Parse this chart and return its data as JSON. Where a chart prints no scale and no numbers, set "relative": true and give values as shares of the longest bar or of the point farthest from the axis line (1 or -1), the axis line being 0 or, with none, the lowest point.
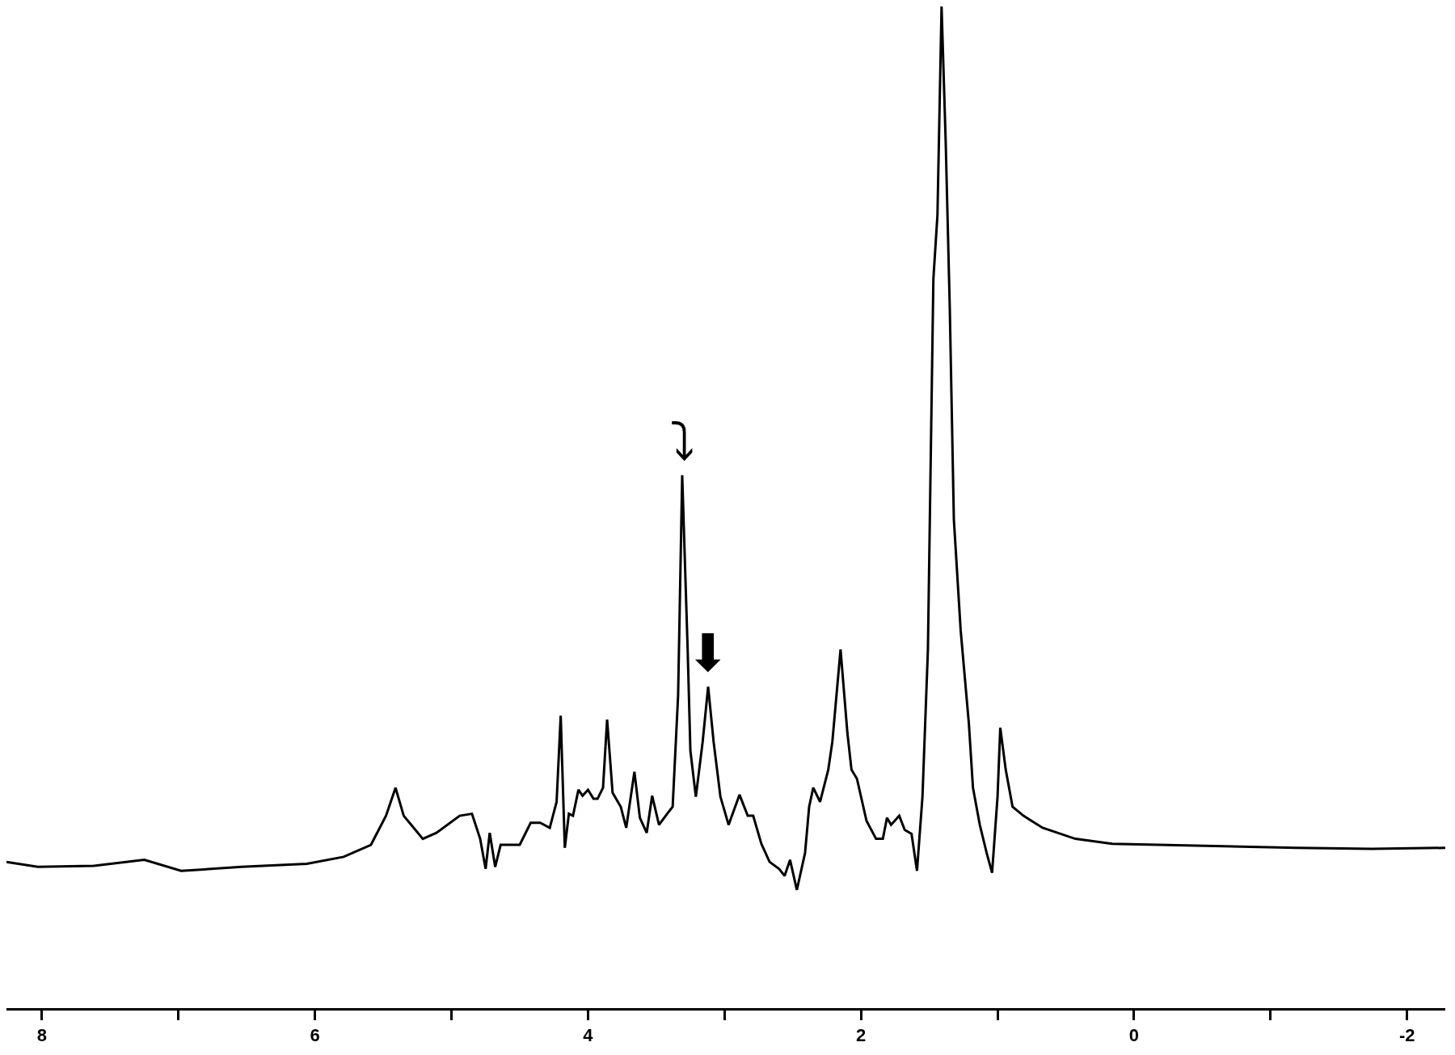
{
  "chart_data": {
    "type": "line",
    "relative": true,
    "color": "#000000",
    "x": [
      8.26,
      8.03,
      7.62,
      7.25,
      6.98,
      6.54,
      6.06,
      5.79,
      5.59,
      5.48,
      5.41,
      5.35,
      5.21,
      5.11,
      4.94,
      4.85,
      4.79,
      4.75,
      4.72,
      4.68,
      4.64,
      4.5,
      4.42,
      4.35,
      4.28,
      4.23,
      4.2,
      4.17,
      4.14,
      4.11,
      4.07,
      4.04,
      4.0,
      3.96,
      3.93,
      3.89,
      3.86,
      3.82,
      3.76,
      3.72,
      3.66,
      3.62,
      3.57,
      3.53,
      3.48,
      3.42,
      3.38,
      3.34,
      3.31,
      3.27,
      3.25,
      3.21,
      3.16,
      3.12,
      3.08,
      3.03,
      2.97,
      2.89,
      2.83,
      2.79,
      2.73,
      2.67,
      2.6,
      2.56,
      2.52,
      2.47,
      2.41,
      2.38,
      2.35,
      2.3,
      2.24,
      2.21,
      2.15,
      2.1,
      2.07,
      2.03,
      1.96,
      1.89,
      1.84,
      1.81,
      1.78,
      1.72,
      1.68,
      1.63,
      1.59,
      1.55,
      1.51,
      1.47,
      1.44,
      1.41,
      1.38,
      1.35,
      1.32,
      1.27,
      1.21,
      1.18,
      1.13,
      1.08,
      1.04,
      1.0,
      0.98,
      0.94,
      0.89,
      0.81,
      0.67,
      0.43,
      0.16,
      -0.18,
      -0.52,
      -1.19,
      -1.74,
      -2.28
    ],
    "values": [
      0.146,
      0.141,
      0.142,
      0.148,
      0.137,
      0.141,
      0.144,
      0.151,
      0.163,
      0.192,
      0.22,
      0.192,
      0.169,
      0.175,
      0.192,
      0.194,
      0.169,
      0.139,
      0.175,
      0.141,
      0.163,
      0.163,
      0.185,
      0.185,
      0.18,
      0.206,
      0.292,
      0.16,
      0.194,
      0.192,
      0.218,
      0.212,
      0.218,
      0.209,
      0.209,
      0.22,
      0.288,
      0.215,
      0.201,
      0.18,
      0.236,
      0.19,
      0.175,
      0.212,
      0.183,
      0.194,
      0.201,
      0.312,
      0.532,
      0.358,
      0.257,
      0.211,
      0.266,
      0.321,
      0.266,
      0.211,
      0.183,
      0.213,
      0.192,
      0.192,
      0.164,
      0.146,
      0.139,
      0.132,
      0.148,
      0.118,
      0.155,
      0.201,
      0.22,
      0.206,
      0.238,
      0.266,
      0.358,
      0.275,
      0.238,
      0.229,
      0.187,
      0.169,
      0.169,
      0.19,
      0.183,
      0.192,
      0.178,
      0.174,
      0.137,
      0.211,
      0.358,
      0.728,
      0.792,
      1.0,
      0.866,
      0.7,
      0.488,
      0.377,
      0.284,
      0.22,
      0.183,
      0.155,
      0.135,
      0.211,
      0.28,
      0.238,
      0.201,
      0.192,
      0.18,
      0.169,
      0.164,
      0.163,
      0.162,
      0.16,
      0.159,
      0.16
    ],
    "xlim": [
      8.26,
      -2.28
    ],
    "xticks": [
      8,
      {
        "value": 7,
        "label": null
      },
      6,
      {
        "value": 5,
        "label": null
      },
      4,
      {
        "value": 3,
        "label": null
      },
      2,
      {
        "value": 1,
        "label": null
      },
      0,
      {
        "value": -1,
        "label": null
      },
      -2
    ],
    "annotations": [
      {
        "text": "⤵",
        "x": 3.31,
        "y": 0.532
      },
      {
        "text": "⬇",
        "x": 3.12,
        "y": 0.321
      }
    ],
    "marker": "none",
    "line_style": "solid"
  }
}
